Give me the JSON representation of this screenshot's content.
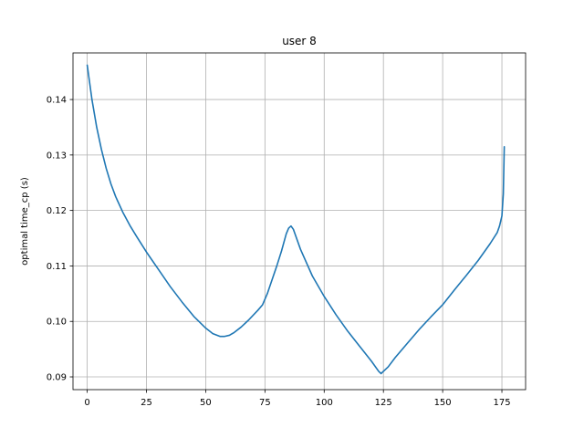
{
  "chart_data": {
    "type": "line",
    "title": "user 8",
    "xlabel": "",
    "ylabel": "optimal time_cp (s)",
    "xlim": [
      -6,
      185
    ],
    "ylim": [
      0.0877,
      0.1484
    ],
    "xticks": [
      0,
      25,
      50,
      75,
      100,
      125,
      150,
      175
    ],
    "yticks": [
      0.09,
      0.1,
      0.11,
      0.12,
      0.13,
      0.14
    ],
    "ytick_labels": [
      "0.09",
      "0.10",
      "0.11",
      "0.12",
      "0.13",
      "0.14"
    ],
    "grid": true,
    "colors": {
      "line": "#1f77b4",
      "grid": "#b0b0b0"
    },
    "series": [
      {
        "x": [
          0,
          2,
          4,
          6,
          8,
          10,
          12,
          15,
          18,
          21,
          25,
          30,
          35,
          40,
          45,
          50,
          53,
          56,
          58,
          60,
          62,
          65,
          68,
          72,
          74,
          76,
          78,
          80,
          82,
          84,
          85,
          86,
          87,
          90,
          95,
          100,
          105,
          110,
          115,
          120,
          123,
          124,
          127,
          130,
          135,
          140,
          145,
          150,
          155,
          160,
          165,
          170,
          173,
          174,
          175,
          175.6,
          176
        ],
        "y": [
          0.1462,
          0.14,
          0.135,
          0.131,
          0.1276,
          0.1248,
          0.1225,
          0.1197,
          0.1173,
          0.1152,
          0.1125,
          0.1094,
          0.1063,
          0.1035,
          0.1009,
          0.0988,
          0.0978,
          0.0973,
          0.0973,
          0.0975,
          0.098,
          0.099,
          0.1002,
          0.102,
          0.103,
          0.105,
          0.1075,
          0.11,
          0.1127,
          0.1158,
          0.1168,
          0.1172,
          0.1166,
          0.113,
          0.1082,
          0.1045,
          0.1012,
          0.0982,
          0.0955,
          0.0928,
          0.091,
          0.0906,
          0.0918,
          0.0935,
          0.096,
          0.0985,
          0.1008,
          0.103,
          0.1057,
          0.1083,
          0.111,
          0.114,
          0.116,
          0.1172,
          0.119,
          0.123,
          0.1315
        ]
      }
    ]
  }
}
